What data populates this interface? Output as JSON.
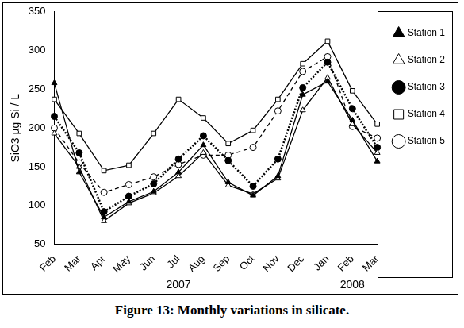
{
  "chart_data": {
    "type": "line",
    "caption": "Figure 13: Monthly variations in silicate.",
    "y_label": "SiO3 µg Si / L",
    "categories": [
      "Feb",
      "Mar",
      "Apr",
      "May",
      "Jun",
      "Jul",
      "Aug",
      "Sep",
      "Oct",
      "Nov",
      "Dec",
      "Jan",
      "Feb",
      "Mar"
    ],
    "x_groups": [
      {
        "label": "2007",
        "from": 0,
        "to": 10
      },
      {
        "label": "2008",
        "from": 11,
        "to": 13
      }
    ],
    "series": [
      {
        "name": "Station 1",
        "color": "#000000",
        "marker": "filled_triangle",
        "line_style": "solid",
        "values": [
          258,
          143,
          85,
          105,
          118,
          143,
          178,
          130,
          113,
          138,
          243,
          260,
          210,
          157
        ]
      },
      {
        "name": "Station 2",
        "color": "#000000",
        "marker": "open_triangle",
        "line_style": "solid",
        "values": [
          193,
          150,
          80,
          103,
          116,
          138,
          168,
          126,
          115,
          135,
          223,
          265,
          205,
          168
        ]
      },
      {
        "name": "Station 3",
        "color": "#000000",
        "marker": "filled_circle",
        "line_style": "dotted",
        "values": [
          215,
          168,
          92,
          112,
          128,
          160,
          190,
          158,
          125,
          160,
          252,
          285,
          225,
          175
        ]
      },
      {
        "name": "Station 4",
        "color": "#000000",
        "marker": "open_square",
        "line_style": "solid",
        "values": [
          237,
          193,
          145,
          152,
          193,
          237,
          213,
          180,
          197,
          237,
          283,
          312,
          248,
          205
        ]
      },
      {
        "name": "Station 5",
        "color": "#000000",
        "marker": "open_circle",
        "line_style": "dashed",
        "values": [
          200,
          155,
          117,
          127,
          137,
          153,
          165,
          165,
          175,
          222,
          273,
          292,
          202,
          187
        ]
      }
    ],
    "ylim": [
      50,
      350
    ],
    "yticks": [
      50,
      100,
      150,
      200,
      250,
      300,
      350
    ],
    "grid": false,
    "legend": "right"
  }
}
